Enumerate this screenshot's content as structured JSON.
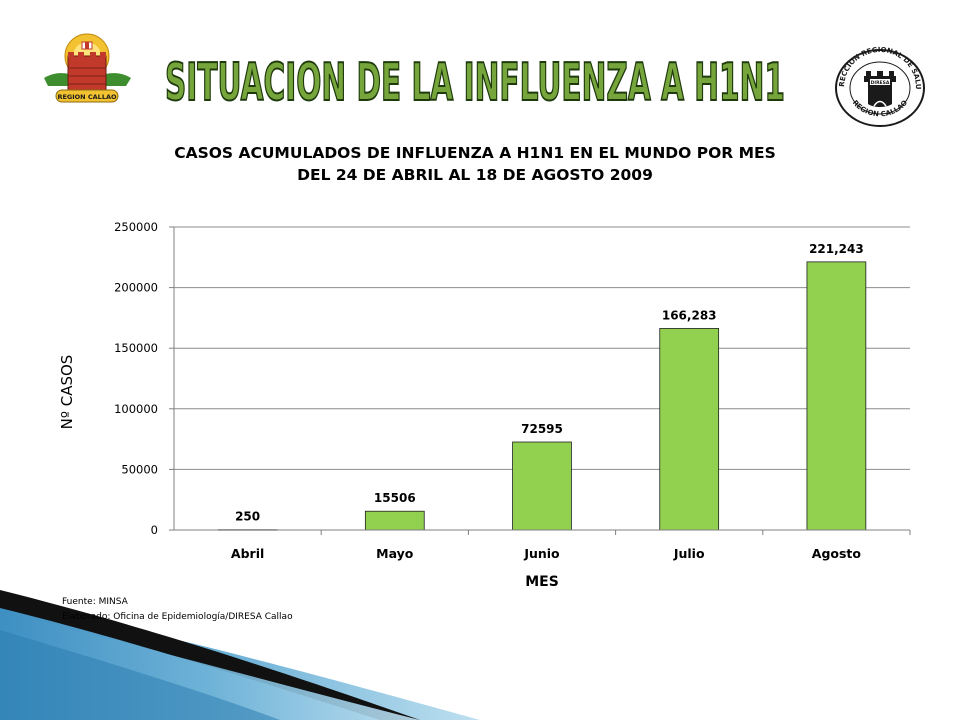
{
  "header": {
    "banner_text": "SITUACION DE LA INFLUENZA A H1N1",
    "left_logo_caption": "REGION CALLAO",
    "right_logo_top_text": "DIRECCION REGIONAL DE SALUD",
    "right_logo_bottom_text": "REGION CALLAO",
    "right_logo_center_text": "DIRESA"
  },
  "chart_data": {
    "type": "bar",
    "title_line1": "CASOS ACUMULADOS DE INFLUENZA A H1N1 EN EL MUNDO  POR MES",
    "title_line2": "DEL 24 DE ABRIL AL 18 DE AGOSTO 2009",
    "xlabel": "MES",
    "ylabel": "Nº CASOS",
    "categories": [
      "Abril",
      "Mayo",
      "Junio",
      "Julio",
      "Agosto"
    ],
    "values": [
      250,
      15506,
      72595,
      166283,
      221243
    ],
    "data_labels": [
      "250",
      "15506",
      "72595",
      "166,283",
      "221,243"
    ],
    "ylim": [
      0,
      250000
    ],
    "yticks": [
      0,
      50000,
      100000,
      150000,
      200000,
      250000
    ],
    "ytick_labels": [
      "0",
      "50000",
      "100000",
      "150000",
      "200000",
      "250000"
    ],
    "grid": true,
    "legend": "none",
    "bar_color": "#92d050",
    "bar_edge_color": "#1f1f1f"
  },
  "footer": {
    "source": "Fuente: MINSA",
    "prepared_by": "Elaborado: Oficina de Epidemiología/DIRESA Callao"
  },
  "colors": {
    "banner_fill": "#76a53b",
    "banner_stroke": "#1e3a0c",
    "decor_blue": "#6fb3d8",
    "decor_dark": "#111111"
  }
}
